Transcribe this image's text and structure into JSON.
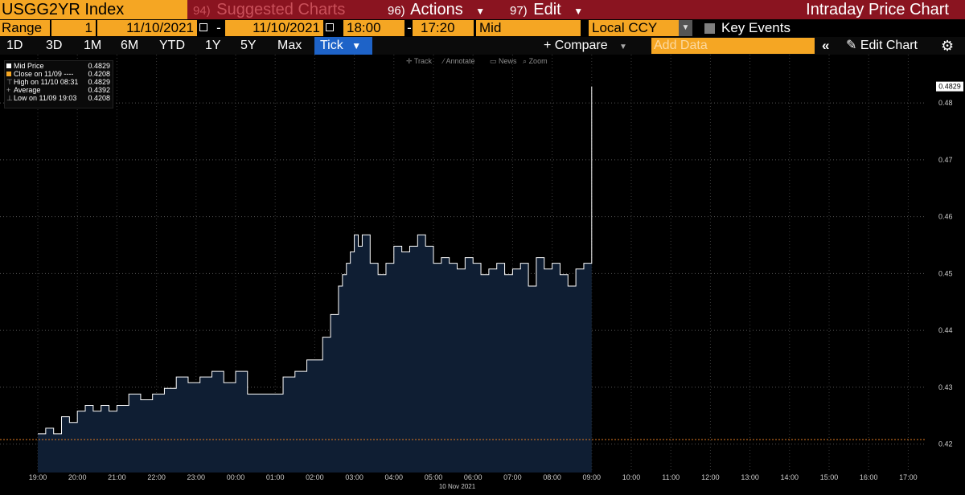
{
  "title_bar": {
    "ticker": "USGG2YR Index",
    "suggested": {
      "num": "94)",
      "label": "Suggested Charts"
    },
    "actions": {
      "num": "96)",
      "label": "Actions"
    },
    "edit": {
      "num": "97)",
      "label": "Edit"
    },
    "chart_name": "Intraday Price Chart"
  },
  "range_bar": {
    "range_label": "Range",
    "range_value": "1",
    "start_date": "11/10/2021",
    "end_date": "11/10/2021",
    "start_time": "18:00",
    "end_time": "17:20",
    "price_type": "Mid",
    "currency": "Local CCY",
    "key_events_label": "Key Events"
  },
  "period_bar": {
    "periods": [
      "1D",
      "3D",
      "1M",
      "6M",
      "YTD",
      "1Y",
      "5Y",
      "Max"
    ],
    "tick_label": "Tick",
    "compare_label": "+ Compare",
    "add_data_placeholder": "Add Data",
    "edit_chart_label": "Edit Chart"
  },
  "chart_toolbar": [
    "Track",
    "Annotate",
    "News",
    "Zoom"
  ],
  "legend": [
    {
      "label": "Mid Price",
      "value": "0.4829"
    },
    {
      "label": "Close on 11/09 ----",
      "value": "0.4208"
    },
    {
      "label": "High on 11/10 08:31",
      "value": "0.4829"
    },
    {
      "label": "Average",
      "value": "0.4392"
    },
    {
      "label": "Low on 11/09 19:03",
      "value": "0.4208"
    }
  ],
  "colors": {
    "accent_orange": "#f5a623",
    "title_red": "#8a1420",
    "tick_blue": "#1e63c8",
    "area_fill": "#0f1e33",
    "close_line": "#e07a22"
  },
  "chart_data": {
    "type": "area",
    "title": "",
    "xlabel": "10 Nov 2021",
    "ylabel": "",
    "x_ticks": [
      "19:00",
      "20:00",
      "21:00",
      "22:00",
      "23:00",
      "00:00",
      "01:00",
      "02:00",
      "03:00",
      "04:00",
      "05:00",
      "06:00",
      "07:00",
      "08:00",
      "09:00",
      "10:00",
      "11:00",
      "12:00",
      "13:00",
      "14:00",
      "15:00",
      "16:00",
      "17:00"
    ],
    "y_ticks": [
      "0.42",
      "0.43",
      "0.44",
      "0.45",
      "0.46",
      "0.47",
      "0.48"
    ],
    "ylim": [
      0.415,
      0.4885
    ],
    "last_price_label": "0.4829",
    "close_reference": 0.4208,
    "grid": true,
    "series": [
      {
        "name": "Mid Price",
        "x_hours": [
          0,
          0.2,
          0.4,
          0.6,
          0.8,
          1.0,
          1.2,
          1.4,
          1.6,
          1.8,
          2.0,
          2.3,
          2.6,
          2.9,
          3.2,
          3.5,
          3.8,
          4.1,
          4.4,
          4.7,
          5.0,
          5.3,
          5.6,
          5.9,
          6.2,
          6.5,
          6.8,
          7.0,
          7.2,
          7.4,
          7.6,
          7.7,
          7.8,
          7.9,
          8.0,
          8.1,
          8.2,
          8.4,
          8.6,
          8.8,
          9.0,
          9.2,
          9.4,
          9.6,
          9.8,
          10.0,
          10.2,
          10.4,
          10.6,
          10.8,
          11.0,
          11.2,
          11.4,
          11.6,
          11.8,
          12.0,
          12.2,
          12.4,
          12.6,
          12.8,
          13.0,
          13.2,
          13.4,
          13.6,
          13.8,
          13.9,
          14.0
        ],
        "values": [
          0.4218,
          0.4228,
          0.4218,
          0.4248,
          0.4238,
          0.4258,
          0.4268,
          0.4258,
          0.4268,
          0.4258,
          0.4268,
          0.4288,
          0.4278,
          0.4288,
          0.4298,
          0.4318,
          0.4308,
          0.4318,
          0.4328,
          0.4308,
          0.4328,
          0.4288,
          0.4288,
          0.4288,
          0.4318,
          0.4328,
          0.4348,
          0.4348,
          0.4388,
          0.4428,
          0.4478,
          0.4498,
          0.4518,
          0.4538,
          0.4568,
          0.4548,
          0.4568,
          0.4518,
          0.4498,
          0.4518,
          0.4548,
          0.4538,
          0.4548,
          0.4568,
          0.4548,
          0.4518,
          0.4528,
          0.4518,
          0.4508,
          0.4528,
          0.4518,
          0.4498,
          0.4508,
          0.4518,
          0.4498,
          0.4508,
          0.4518,
          0.4478,
          0.4528,
          0.4508,
          0.4518,
          0.4498,
          0.4478,
          0.4508,
          0.4518,
          0.4518,
          0.4829
        ]
      }
    ]
  }
}
